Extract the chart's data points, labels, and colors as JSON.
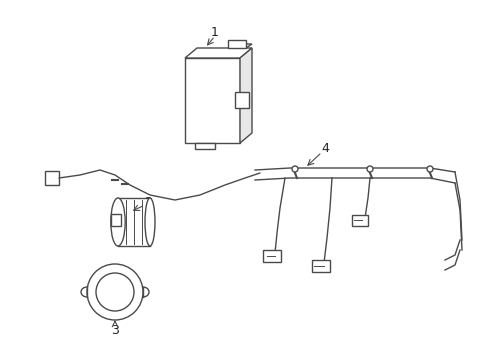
{
  "background_color": "#ffffff",
  "line_color": "#4a4a4a",
  "label_color": "#222222",
  "figure_width": 4.89,
  "figure_height": 3.6,
  "dpi": 100
}
